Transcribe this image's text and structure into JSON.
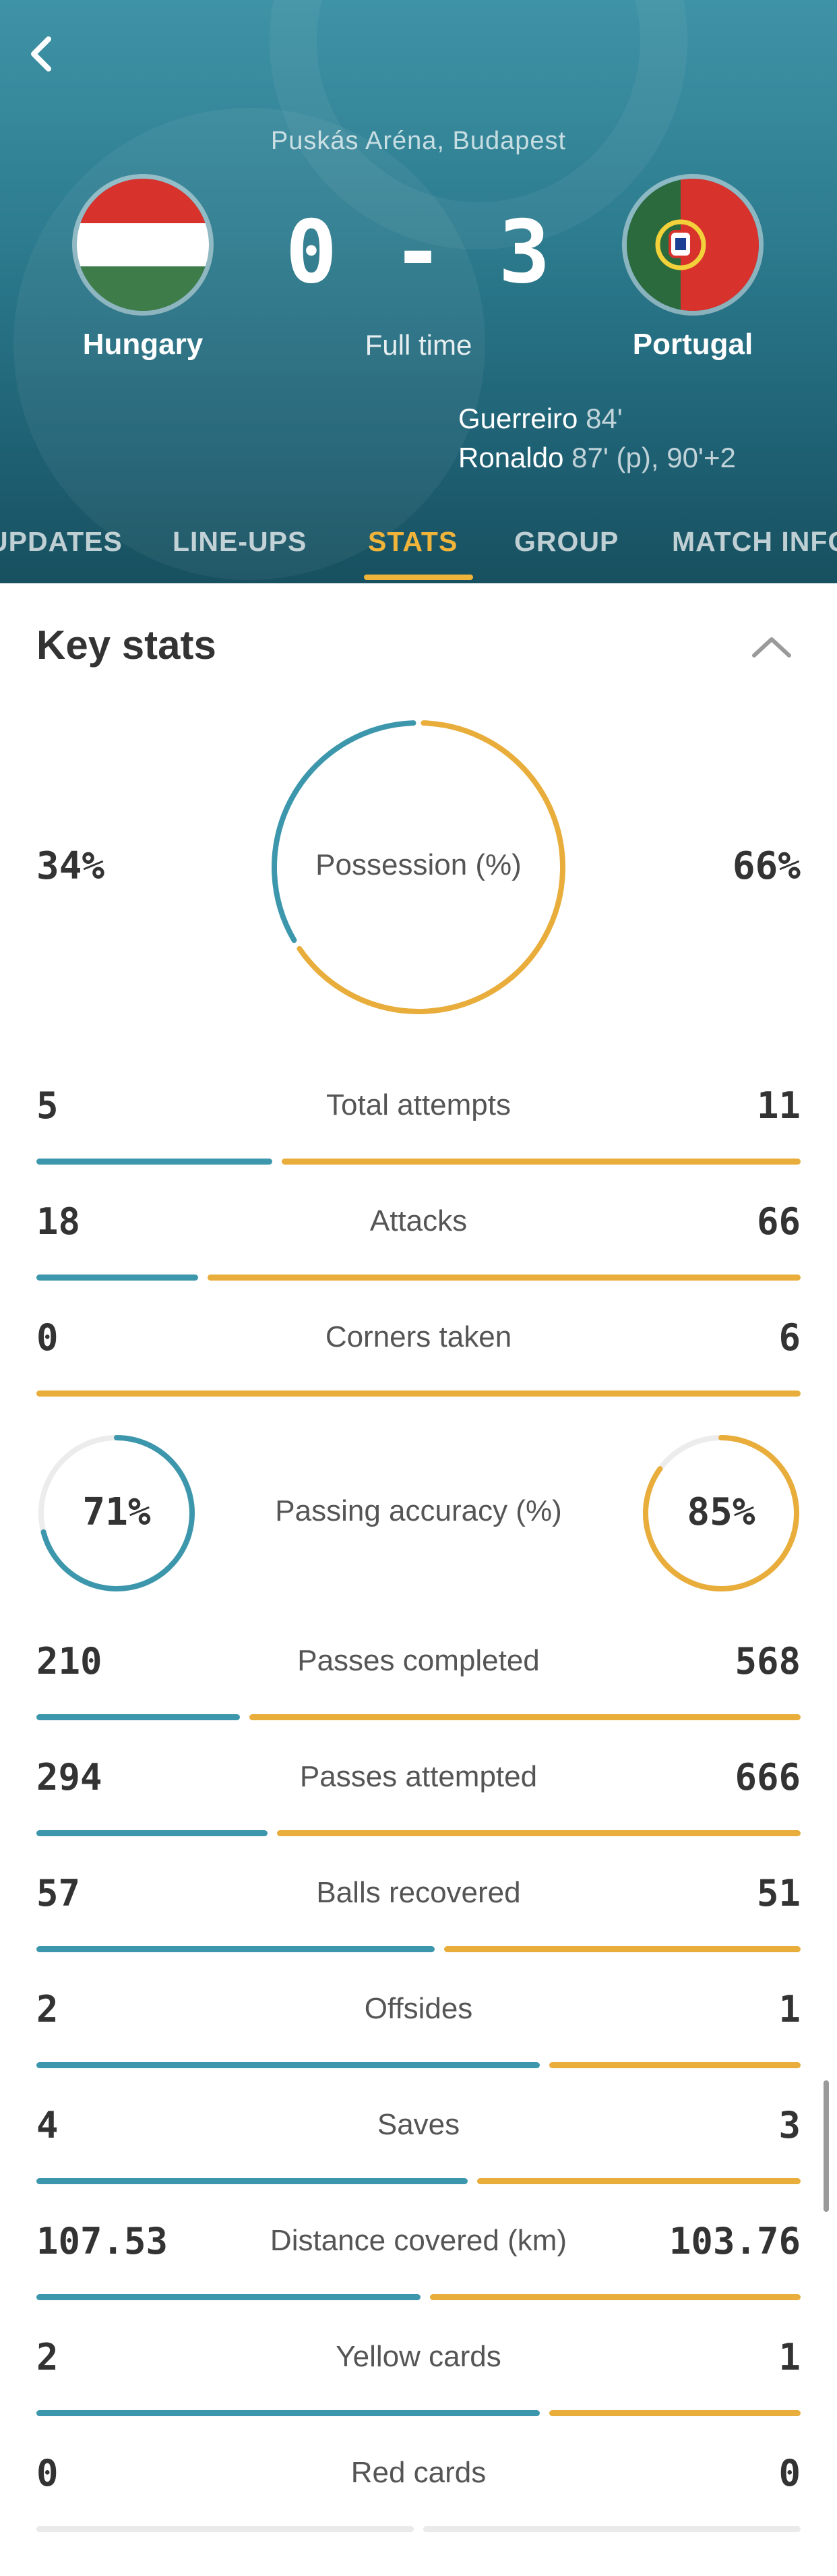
{
  "match": {
    "venue": "Puskás Aréna, Budapest",
    "score": "0 - 3",
    "status": "Full time",
    "home": {
      "name": "Hungary",
      "flag": "hungary-flag",
      "colors": [
        "#d8322d",
        "#ffffff",
        "#3e7d4a"
      ]
    },
    "away": {
      "name": "Portugal",
      "flag": "portugal-flag",
      "colors": [
        "#2a6a3c",
        "#d8322d"
      ]
    },
    "scorers": [
      {
        "name": "Guerreiro",
        "minutes": "84'"
      },
      {
        "name": "Ronaldo",
        "minutes": "87' (p), 90'+2"
      }
    ]
  },
  "tabs": [
    {
      "label": "UPDATES",
      "active": false
    },
    {
      "label": "LINE-UPS",
      "active": false
    },
    {
      "label": "STATS",
      "active": true
    },
    {
      "label": "GROUP",
      "active": false
    },
    {
      "label": "MATCH INFO",
      "active": false
    }
  ],
  "key_stats": {
    "title": "Key stats",
    "possession": {
      "label": "Possession (%)",
      "home": "34%",
      "away": "66%",
      "home_value": 34,
      "away_value": 66
    },
    "passing_accuracy": {
      "label": "Passing accuracy (%)",
      "home": "71%",
      "away": "85%",
      "home_value": 71,
      "away_value": 85
    },
    "rows": [
      {
        "label": "Total attempts",
        "home": "5",
        "away": "11",
        "home_value": 5,
        "away_value": 11
      },
      {
        "label": "Attacks",
        "home": "18",
        "away": "66",
        "home_value": 18,
        "away_value": 66
      },
      {
        "label": "Corners taken",
        "home": "0",
        "away": "6",
        "home_value": 0,
        "away_value": 6
      },
      {
        "label": "Passes completed",
        "home": "210",
        "away": "568",
        "home_value": 210,
        "away_value": 568
      },
      {
        "label": "Passes attempted",
        "home": "294",
        "away": "666",
        "home_value": 294,
        "away_value": 666
      },
      {
        "label": "Balls recovered",
        "home": "57",
        "away": "51",
        "home_value": 57,
        "away_value": 51
      },
      {
        "label": "Offsides",
        "home": "2",
        "away": "1",
        "home_value": 2,
        "away_value": 1
      },
      {
        "label": "Saves",
        "home": "4",
        "away": "3",
        "home_value": 4,
        "away_value": 3
      },
      {
        "label": "Distance covered (km)",
        "home": "107.53",
        "away": "103.76",
        "home_value": 107.53,
        "away_value": 103.76
      },
      {
        "label": "Yellow cards",
        "home": "2",
        "away": "1",
        "home_value": 2,
        "away_value": 1
      },
      {
        "label": "Red cards",
        "home": "0",
        "away": "0",
        "home_value": 0,
        "away_value": 0
      }
    ]
  },
  "colors": {
    "home": "#3d97ac",
    "away": "#e8ad3a",
    "accent": "#f1b43a"
  },
  "icons": {
    "back": "chevron-left-icon",
    "collapse": "chevron-up-icon"
  }
}
